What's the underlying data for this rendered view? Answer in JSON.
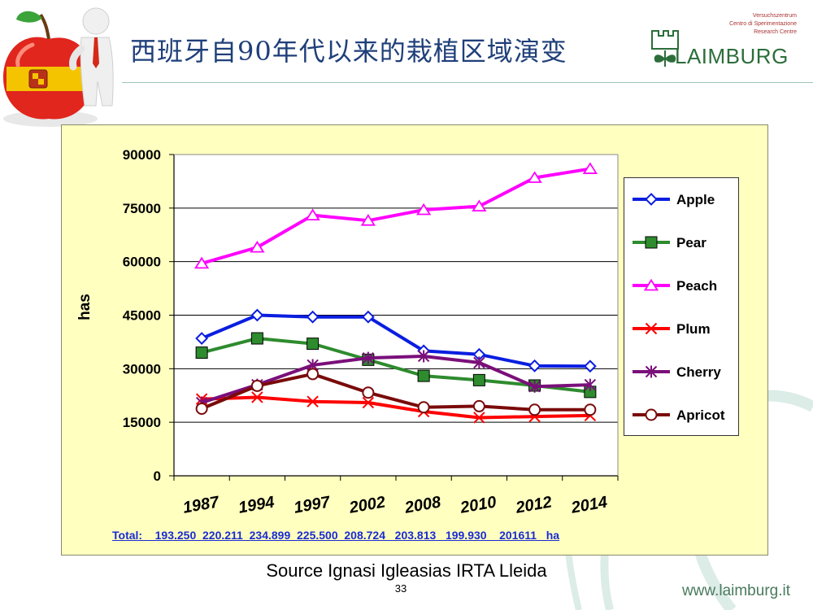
{
  "slide": {
    "title": "西班牙自90年代以来的栽植区域演变",
    "source": "Source Ignasi Igleasias IRTA Lleida",
    "page_number": "33",
    "website": "www.laimburg.it",
    "totals_line": "Total:    193.250  220.211  234.899  225.500  208.724   203.813   199.930    201611   ha"
  },
  "logo": {
    "lines": [
      "Versuchszentrum",
      "Centro di Sperimentazione",
      "Research Centre"
    ],
    "wordmark": "LAIMBURG"
  },
  "colors": {
    "Apple": "#0a1ee0",
    "Pear": "#2e8b2e",
    "Peach": "#ff00ff",
    "Plum": "#ff0000",
    "Cherry": "#7a0f7a",
    "Apricot": "#7a0a0a",
    "plot_bg": "#ffffff",
    "chart_bg": "#ffffc0"
  },
  "chart_data": {
    "type": "line",
    "title": "",
    "xlabel": "",
    "ylabel": "has",
    "categories": [
      "1987",
      "1994",
      "1997",
      "2002",
      "2008",
      "2010",
      "2012",
      "2014"
    ],
    "ylim": [
      0,
      90000
    ],
    "yticks": [
      "0",
      "15000",
      "30000",
      "45000",
      "60000",
      "75000",
      "90000"
    ],
    "grid": true,
    "legend_position": "right",
    "series": [
      {
        "name": "Apple",
        "marker": "diamond",
        "values": [
          38500,
          45000,
          44500,
          44500,
          35000,
          34000,
          30800,
          30700
        ]
      },
      {
        "name": "Pear",
        "marker": "square",
        "values": [
          34500,
          38500,
          37000,
          32500,
          28000,
          26800,
          25300,
          23500
        ]
      },
      {
        "name": "Peach",
        "marker": "triangle",
        "values": [
          59500,
          64000,
          73000,
          71500,
          74500,
          75500,
          83500,
          86000
        ]
      },
      {
        "name": "Plum",
        "marker": "x",
        "values": [
          21500,
          22000,
          20800,
          20500,
          18000,
          16300,
          16600,
          16900
        ]
      },
      {
        "name": "Cherry",
        "marker": "star",
        "values": [
          20500,
          25500,
          31000,
          33000,
          33500,
          31700,
          25000,
          25500
        ]
      },
      {
        "name": "Apricot",
        "marker": "circle",
        "values": [
          18800,
          25200,
          28500,
          23300,
          19200,
          19500,
          18500,
          18500
        ]
      }
    ]
  }
}
